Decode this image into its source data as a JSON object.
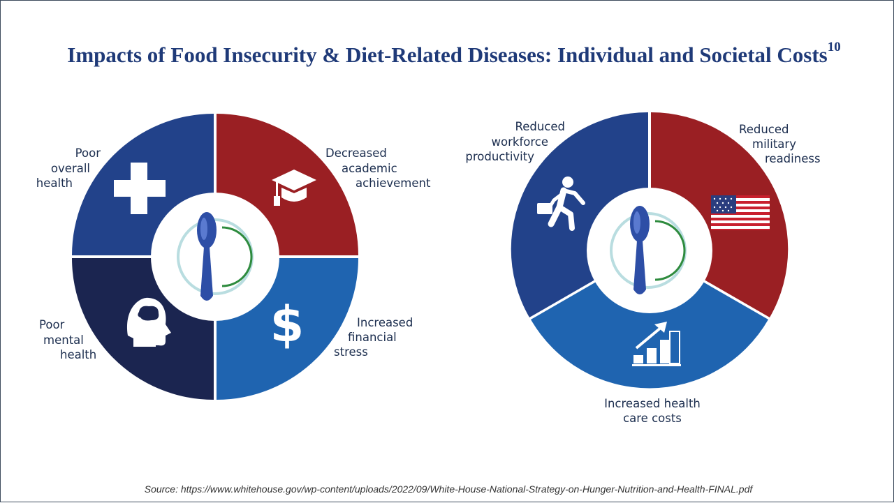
{
  "slide": {
    "title": "Impacts of Food Insecurity & Diet-Related Diseases: Individual and Societal Costs",
    "title_superscript": "10",
    "source": "Source: https://www.whitehouse.gov/wp-content/uploads/2022/09/White-House-National-Strategy-on-Hunger-Nutrition-and-Health-FINAL.pdf"
  },
  "individual_costs": {
    "segments": [
      {
        "lines": [
          "Poor",
          "overall",
          "health"
        ],
        "icon": "medical-cross-icon",
        "color": "#22428a"
      },
      {
        "lines": [
          "Decreased",
          "academic",
          "achievement"
        ],
        "icon": "graduation-cap-icon",
        "color": "#9a1f23"
      },
      {
        "lines": [
          "Increased",
          "financial",
          "stress"
        ],
        "icon": "dollar-sign-icon",
        "color": "#1f64b0"
      },
      {
        "lines": [
          "Poor",
          "mental",
          "health"
        ],
        "icon": "head-brain-icon",
        "color": "#1b2550"
      }
    ]
  },
  "societal_costs": {
    "segments": [
      {
        "lines": [
          "Reduced",
          "workforce",
          "productivity"
        ],
        "icon": "running-worker-icon",
        "color": "#22428a"
      },
      {
        "lines": [
          "Reduced",
          "military",
          "readiness"
        ],
        "icon": "us-flag-icon",
        "color": "#9a1f23"
      },
      {
        "lines": [
          "Increased health",
          "care costs"
        ],
        "icon": "rising-bar-chart-icon",
        "color": "#1f64b0"
      }
    ]
  },
  "center_icon": "spoon-and-plate-icon",
  "colors": {
    "title": "#1f3a78",
    "label": "#1b2d4e",
    "plate_rim": "#b9dde0",
    "plate_inner": "#2e8b3e",
    "spoon": "#2d4ea6"
  }
}
